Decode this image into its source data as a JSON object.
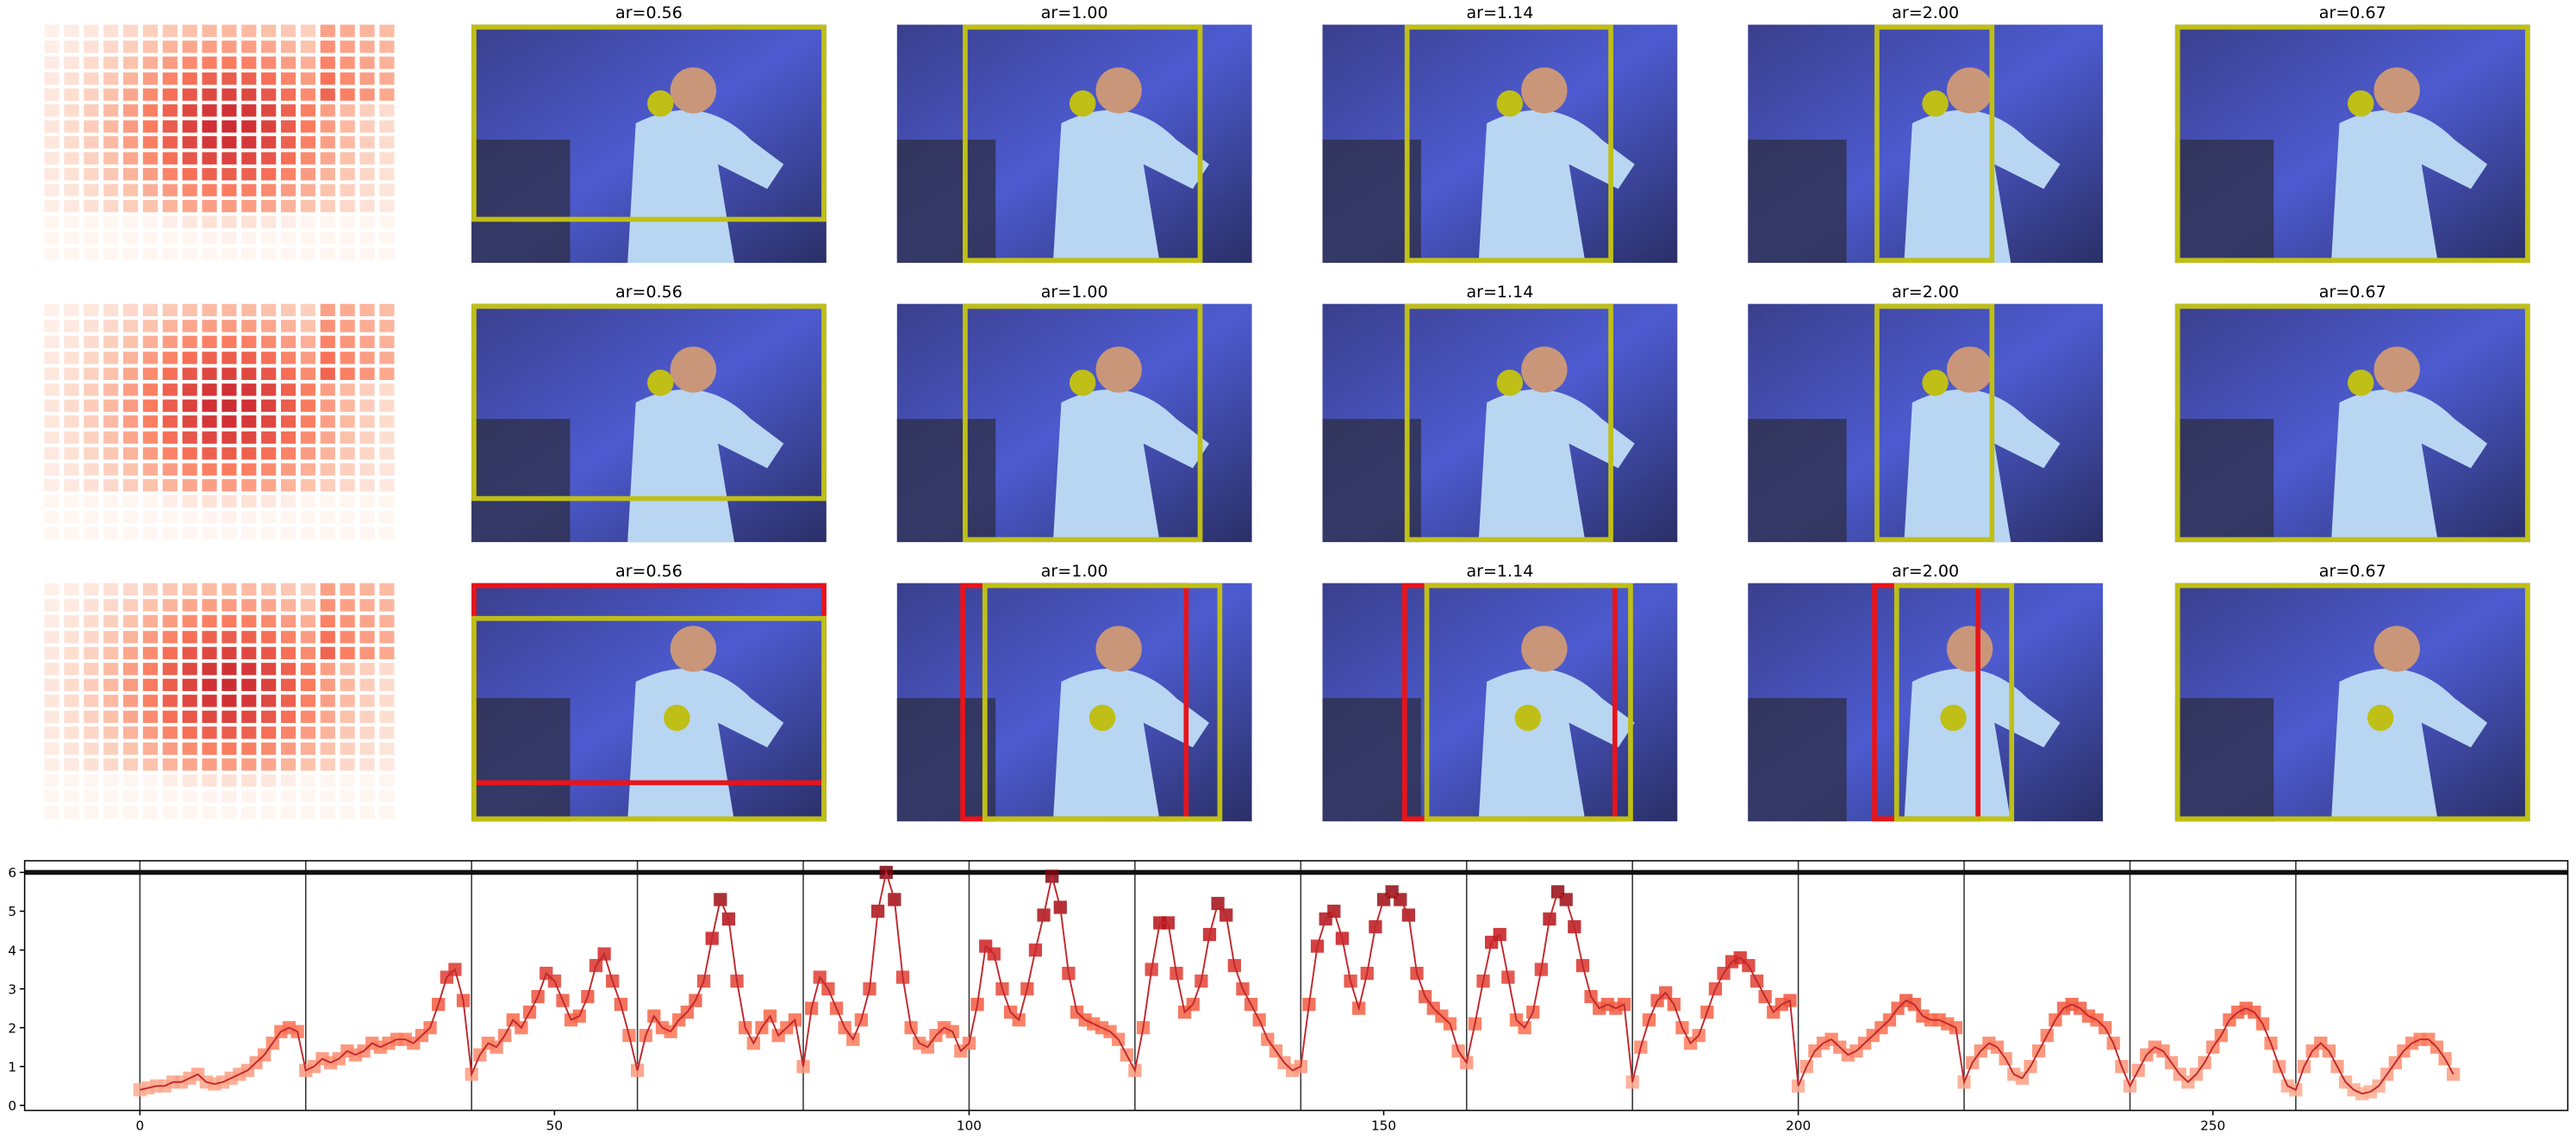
{
  "panels": {
    "titles": [
      [
        "ar=0.56",
        "ar=1.00",
        "ar=1.14",
        "ar=2.00",
        "ar=0.67"
      ],
      [
        "ar=0.56",
        "ar=1.00",
        "ar=1.14",
        "ar=2.00",
        "ar=0.67"
      ],
      [
        "ar=0.56",
        "ar=1.00",
        "ar=1.14",
        "ar=2.00",
        "ar=0.67"
      ]
    ]
  },
  "chart_data": {
    "type": "line",
    "x": [
      0,
      1,
      2,
      3,
      4,
      5,
      6,
      7,
      8,
      9,
      10,
      11,
      12,
      13,
      14,
      15,
      16,
      17,
      18,
      19,
      20,
      21,
      22,
      23,
      24,
      25,
      26,
      27,
      28,
      29,
      30,
      31,
      32,
      33,
      34,
      35,
      36,
      37,
      38,
      39,
      40,
      41,
      42,
      43,
      44,
      45,
      46,
      47,
      48,
      49,
      50,
      51,
      52,
      53,
      54,
      55,
      56,
      57,
      58,
      59,
      60,
      61,
      62,
      63,
      64,
      65,
      66,
      67,
      68,
      69,
      70,
      71,
      72,
      73,
      74,
      75,
      76,
      77,
      78,
      79,
      80,
      81,
      82,
      83,
      84,
      85,
      86,
      87,
      88,
      89,
      90,
      91,
      92,
      93,
      94,
      95,
      96,
      97,
      98,
      99,
      100,
      101,
      102,
      103,
      104,
      105,
      106,
      107,
      108,
      109,
      110,
      111,
      112,
      113,
      114,
      115,
      116,
      117,
      118,
      119,
      120,
      121,
      122,
      123,
      124,
      125,
      126,
      127,
      128,
      129,
      130,
      131,
      132,
      133,
      134,
      135,
      136,
      137,
      138,
      139,
      140,
      141,
      142,
      143,
      144,
      145,
      146,
      147,
      148,
      149,
      150,
      151,
      152,
      153,
      154,
      155,
      156,
      157,
      158,
      159,
      160,
      161,
      162,
      163,
      164,
      165,
      166,
      167,
      168,
      169,
      170,
      171,
      172,
      173,
      174,
      175,
      176,
      177,
      178,
      179,
      180,
      181,
      182,
      183,
      184,
      185,
      186,
      187,
      188,
      189,
      190,
      191,
      192,
      193,
      194,
      195,
      196,
      197,
      198,
      199,
      200,
      201,
      202,
      203,
      204,
      205,
      206,
      207,
      208,
      209,
      210,
      211,
      212,
      213,
      214,
      215,
      216,
      217,
      218,
      219,
      220,
      221,
      222,
      223,
      224,
      225,
      226,
      227,
      228,
      229,
      230,
      231,
      232,
      233,
      234,
      235,
      236,
      237,
      238,
      239,
      240,
      241,
      242,
      243,
      244,
      245,
      246,
      247,
      248,
      249,
      250,
      251,
      252,
      253,
      254,
      255,
      256,
      257,
      258,
      259,
      260,
      261,
      262,
      263,
      264,
      265,
      266,
      267,
      268,
      269,
      270,
      271,
      272,
      273,
      274,
      275,
      276,
      277,
      278,
      279
    ],
    "values": [
      0.4,
      0.45,
      0.5,
      0.5,
      0.6,
      0.6,
      0.7,
      0.8,
      0.6,
      0.55,
      0.6,
      0.7,
      0.8,
      0.9,
      1.1,
      1.3,
      1.6,
      1.9,
      2.0,
      1.9,
      0.9,
      1.0,
      1.2,
      1.1,
      1.2,
      1.4,
      1.3,
      1.4,
      1.6,
      1.5,
      1.6,
      1.7,
      1.7,
      1.6,
      1.8,
      2.0,
      2.6,
      3.3,
      3.5,
      2.7,
      0.8,
      1.3,
      1.6,
      1.5,
      1.8,
      2.2,
      2.0,
      2.4,
      2.8,
      3.4,
      3.2,
      2.7,
      2.2,
      2.3,
      2.8,
      3.6,
      3.9,
      3.2,
      2.6,
      1.8,
      0.9,
      1.8,
      2.3,
      2.0,
      1.9,
      2.2,
      2.4,
      2.7,
      3.2,
      4.3,
      5.3,
      4.8,
      3.2,
      2.0,
      1.6,
      2.0,
      2.3,
      1.8,
      2.0,
      2.2,
      1.0,
      2.5,
      3.3,
      3.0,
      2.5,
      2.0,
      1.7,
      2.2,
      3.0,
      5.0,
      6.0,
      5.3,
      3.3,
      2.0,
      1.6,
      1.5,
      1.8,
      2.0,
      1.9,
      1.4,
      1.6,
      2.6,
      4.1,
      3.9,
      3.0,
      2.4,
      2.2,
      3.0,
      4.0,
      4.9,
      5.9,
      5.1,
      3.4,
      2.4,
      2.2,
      2.1,
      2.0,
      1.9,
      1.7,
      1.3,
      0.9,
      2.0,
      3.5,
      4.7,
      4.7,
      3.4,
      2.4,
      2.6,
      3.2,
      4.4,
      5.2,
      4.9,
      3.6,
      3.0,
      2.6,
      2.2,
      1.7,
      1.4,
      1.1,
      0.9,
      1.0,
      2.6,
      4.1,
      4.8,
      5.0,
      4.3,
      3.2,
      2.5,
      3.4,
      4.6,
      5.3,
      5.5,
      5.3,
      4.9,
      3.4,
      2.8,
      2.5,
      2.3,
      2.1,
      1.4,
      1.1,
      2.1,
      3.2,
      4.2,
      4.4,
      3.3,
      2.2,
      2.0,
      2.4,
      3.5,
      4.8,
      5.5,
      5.3,
      4.6,
      3.6,
      2.8,
      2.5,
      2.6,
      2.5,
      2.6,
      0.6,
      1.5,
      2.2,
      2.7,
      2.9,
      2.6,
      2.0,
      1.6,
      1.8,
      2.4,
      3.0,
      3.4,
      3.7,
      3.8,
      3.6,
      3.2,
      2.8,
      2.4,
      2.6,
      2.7,
      0.5,
      1.0,
      1.4,
      1.6,
      1.7,
      1.5,
      1.3,
      1.4,
      1.6,
      1.8,
      2.0,
      2.2,
      2.5,
      2.7,
      2.6,
      2.3,
      2.2,
      2.2,
      2.1,
      2.0,
      0.6,
      1.1,
      1.4,
      1.6,
      1.5,
      1.2,
      0.8,
      0.7,
      1.0,
      1.4,
      1.8,
      2.2,
      2.5,
      2.6,
      2.5,
      2.3,
      2.2,
      2.0,
      1.6,
      1.0,
      0.5,
      0.9,
      1.3,
      1.5,
      1.4,
      1.1,
      0.8,
      0.6,
      0.8,
      1.1,
      1.5,
      1.8,
      2.2,
      2.4,
      2.5,
      2.4,
      2.1,
      1.6,
      1.0,
      0.5,
      0.4,
      1.0,
      1.4,
      1.6,
      1.4,
      1.0,
      0.6,
      0.4,
      0.3,
      0.35,
      0.5,
      0.8,
      1.1,
      1.4,
      1.6,
      1.7,
      1.7,
      1.5,
      1.2,
      0.8
    ],
    "color": "#c0282d",
    "xlim": [
      -13.9,
      292.8
    ],
    "ylim": [
      -0.13,
      6.3
    ],
    "xticks": [
      0,
      50,
      100,
      150,
      200,
      250
    ],
    "yticks": [
      0,
      1,
      2,
      3,
      4,
      5,
      6
    ],
    "vlines": [
      0,
      20,
      40,
      60,
      80,
      100,
      120,
      140,
      160,
      180,
      200,
      220,
      240,
      260
    ],
    "hline": 6
  }
}
